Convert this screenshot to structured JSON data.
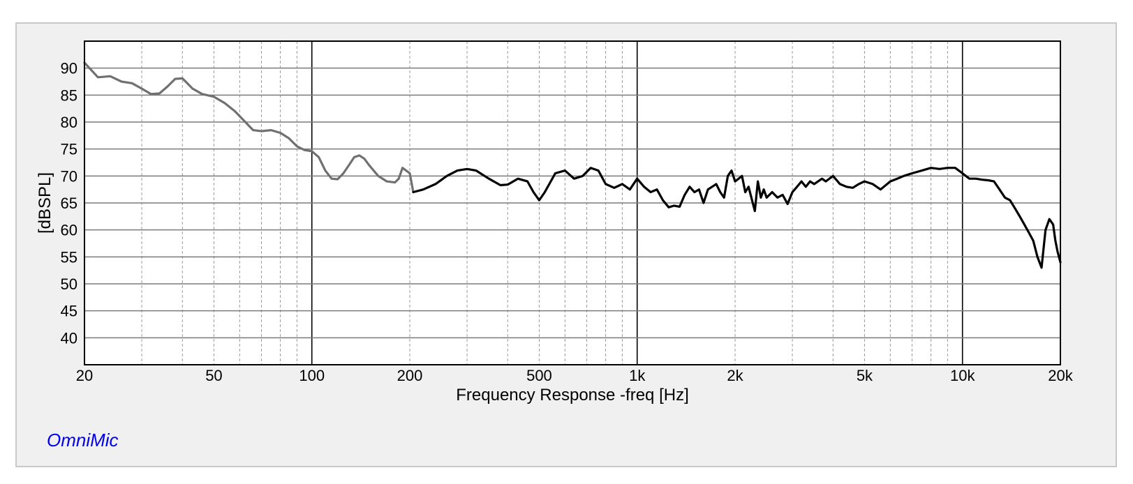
{
  "chart_data": {
    "type": "line",
    "xlabel": "Frequency Response -freq [Hz]",
    "ylabel": "[dBSPL]",
    "x_scale": "log",
    "xlim": [
      20,
      20000
    ],
    "ylim": [
      35,
      95
    ],
    "grid": true,
    "x_ticks": [
      {
        "value": 20,
        "label": "20"
      },
      {
        "value": 50,
        "label": "50"
      },
      {
        "value": 100,
        "label": "100"
      },
      {
        "value": 200,
        "label": "200"
      },
      {
        "value": 500,
        "label": "500"
      },
      {
        "value": 1000,
        "label": "1k"
      },
      {
        "value": 2000,
        "label": "2k"
      },
      {
        "value": 5000,
        "label": "5k"
      },
      {
        "value": 10000,
        "label": "10k"
      },
      {
        "value": 20000,
        "label": "20k"
      }
    ],
    "y_ticks": [
      90,
      85,
      80,
      75,
      70,
      65,
      60,
      55,
      50,
      45,
      40
    ],
    "series": [
      {
        "color": "#707070",
        "x": [
          20,
          22,
          24,
          26,
          28,
          30,
          32,
          34,
          36,
          38,
          40,
          43,
          46,
          50,
          54,
          58,
          62,
          66,
          70,
          75,
          80,
          85,
          90,
          95,
          100,
          105,
          110,
          115,
          120,
          125,
          130,
          135,
          140,
          145,
          150,
          160,
          170,
          180,
          185,
          190,
          200,
          205
        ],
        "values": [
          91,
          88.3,
          88.5,
          87.5,
          87.2,
          86.2,
          85.2,
          85.3,
          86.6,
          88.0,
          88.1,
          86.2,
          85.2,
          84.7,
          83.5,
          82.0,
          80.2,
          78.5,
          78.3,
          78.5,
          78.0,
          77.0,
          75.5,
          74.8,
          74.6,
          73.5,
          71.0,
          69.5,
          69.4,
          70.5,
          72.0,
          73.5,
          73.8,
          73.2,
          72.0,
          70.0,
          69.0,
          68.8,
          69.5,
          71.5,
          70.5,
          67.0
        ]
      },
      {
        "color": "#000000",
        "x": [
          205,
          220,
          240,
          260,
          280,
          300,
          320,
          350,
          380,
          400,
          430,
          460,
          480,
          500,
          520,
          560,
          600,
          640,
          680,
          720,
          760,
          800,
          850,
          900,
          950,
          1000,
          1050,
          1100,
          1150,
          1200,
          1250,
          1300,
          1350,
          1400,
          1450,
          1500,
          1550,
          1600,
          1650,
          1700,
          1750,
          1800,
          1850,
          1900,
          1950,
          2000,
          2050,
          2100,
          2150,
          2200,
          2300,
          2350,
          2400,
          2450,
          2500,
          2600,
          2700,
          2800,
          2900,
          3000,
          3100,
          3200,
          3300,
          3400,
          3500,
          3700,
          3800,
          4000,
          4200,
          4400,
          4600,
          4800,
          5000,
          5300,
          5600,
          6000,
          6300,
          6600,
          7000,
          7500,
          8000,
          8500,
          9000,
          9500,
          10000,
          10500,
          11000,
          11500,
          12000,
          12500,
          13000,
          13500,
          14000,
          14500,
          15000,
          15500,
          16000,
          16500,
          17000,
          17500,
          18000,
          18500,
          19000,
          19300,
          19600,
          20000
        ],
        "values": [
          67.0,
          67.5,
          68.5,
          70.0,
          71.0,
          71.3,
          71.0,
          69.5,
          68.3,
          68.4,
          69.5,
          69.0,
          67.0,
          65.5,
          67.0,
          70.5,
          71.0,
          69.5,
          70.0,
          71.5,
          71.0,
          68.5,
          67.8,
          68.5,
          67.5,
          69.5,
          68.0,
          67.0,
          67.5,
          65.5,
          64.2,
          64.5,
          64.3,
          66.5,
          68.0,
          67.0,
          67.5,
          65.0,
          67.5,
          68.0,
          68.5,
          67.0,
          66.0,
          70.0,
          71.0,
          69.0,
          69.5,
          70.0,
          67.0,
          68.0,
          63.5,
          69.0,
          66.0,
          67.5,
          66.0,
          67.0,
          66.0,
          66.5,
          64.8,
          67.0,
          68.0,
          69.0,
          68.0,
          69.0,
          68.5,
          69.5,
          69.0,
          70.0,
          68.5,
          68.0,
          67.8,
          68.5,
          69.0,
          68.5,
          67.5,
          69.0,
          69.5,
          70.0,
          70.5,
          71.0,
          71.5,
          71.3,
          71.5,
          71.5,
          70.5,
          69.5,
          69.5,
          69.3,
          69.2,
          69.0,
          67.5,
          66.0,
          65.5,
          64.0,
          62.5,
          61.0,
          59.5,
          58.0,
          55.0,
          53.0,
          60.0,
          62.0,
          61.0,
          58.0,
          56.0,
          54.0
        ]
      }
    ]
  },
  "brand": "OmniMic"
}
